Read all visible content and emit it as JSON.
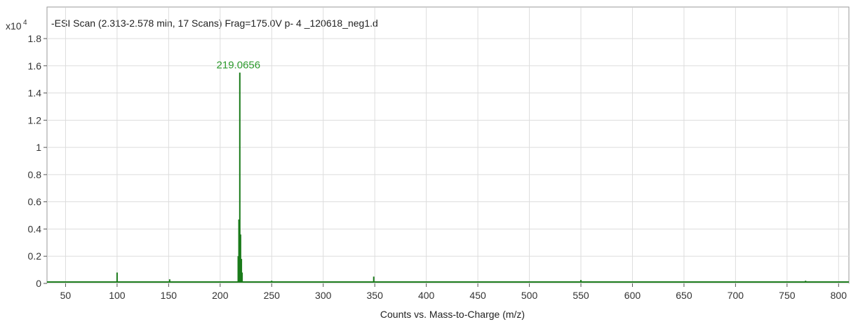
{
  "chart_data": {
    "type": "line",
    "title": "-ESI Scan (2.313-2.578 min, 17 Scans) Frag=175.0V p- 4 _120618_neg1.d",
    "y_multiplier_label": "x10",
    "y_multiplier_exponent": "4",
    "xlabel": "Counts vs. Mass-to-Charge (m/z)",
    "ylabel": "",
    "xlim": [
      32,
      810
    ],
    "ylim": [
      0,
      1.8
    ],
    "x_ticks": [
      50,
      100,
      150,
      200,
      250,
      300,
      350,
      400,
      450,
      500,
      550,
      600,
      650,
      700,
      750,
      800
    ],
    "x_tick_labels": [
      "50",
      "100",
      "150",
      "200",
      "250",
      "300",
      "350",
      "400",
      "450",
      "500",
      "550",
      "600",
      "650",
      "700",
      "750",
      "800"
    ],
    "y_ticks": [
      0,
      0.2,
      0.4,
      0.6,
      0.8,
      1,
      1.2,
      1.4,
      1.6,
      1.8
    ],
    "y_tick_labels": [
      "0",
      "0.2",
      "0.4",
      "0.6",
      "0.8",
      "1",
      "1.2",
      "1.4",
      "1.6",
      "1.8"
    ],
    "grid": true,
    "series": [
      {
        "color": "#1a7a1a",
        "baseline": 0.01,
        "peaks": [
          {
            "x": 100,
            "y": 0.08
          },
          {
            "x": 151,
            "y": 0.03
          },
          {
            "x": 217.5,
            "y": 0.2
          },
          {
            "x": 218.2,
            "y": 0.47
          },
          {
            "x": 219.0656,
            "y": 1.55
          },
          {
            "x": 219.8,
            "y": 0.36
          },
          {
            "x": 220.6,
            "y": 0.18
          },
          {
            "x": 221.3,
            "y": 0.08
          },
          {
            "x": 250,
            "y": 0.02
          },
          {
            "x": 349,
            "y": 0.05
          },
          {
            "x": 550,
            "y": 0.025
          },
          {
            "x": 768,
            "y": 0.02
          }
        ]
      }
    ],
    "annotations": [
      {
        "text": "219.0656",
        "x": 219.0656,
        "y": 1.55,
        "color": "#2e9a2e"
      }
    ]
  }
}
